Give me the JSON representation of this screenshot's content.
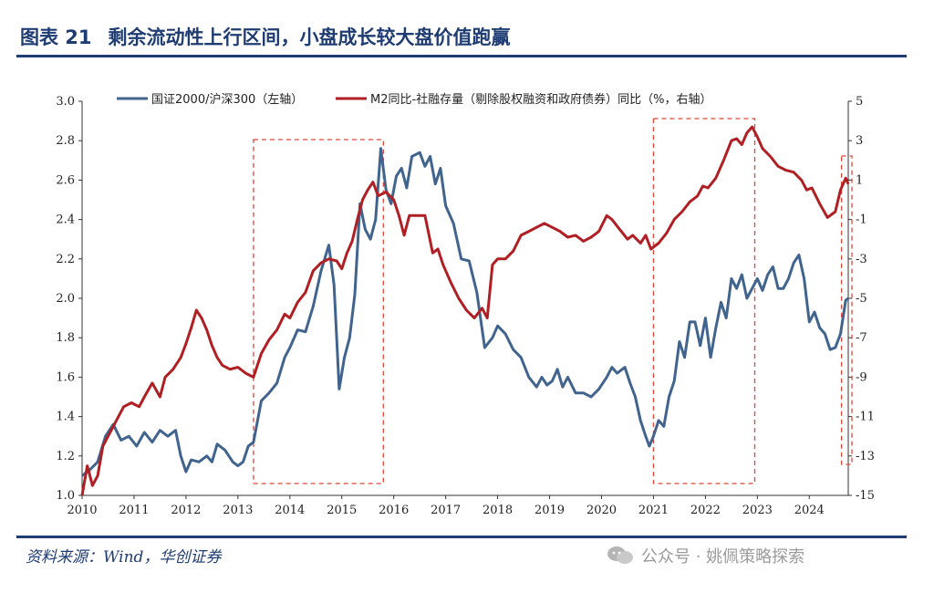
{
  "header": {
    "figure_no": "图表 21",
    "title": "剩余流动性上行区间，小盘成长较大盘价值跑赢"
  },
  "footer": {
    "source": "资料来源：Wind，华创证券",
    "watermark": "公众号 · 姚佩策略探索"
  },
  "colors": {
    "brand": "#1f3c73",
    "left_series": "#41648f",
    "right_series": "#b01f23",
    "highlight_box": "#e0453a"
  },
  "chart_data": {
    "type": "line",
    "title": "",
    "x_ticks": [
      "2010",
      "2011",
      "2012",
      "2013",
      "2014",
      "2015",
      "2016",
      "2017",
      "2018",
      "2019",
      "2020",
      "2021",
      "2022",
      "2023",
      "2024"
    ],
    "xlim": [
      2010.0,
      2024.75
    ],
    "y_left": {
      "ylim": [
        1.0,
        3.0
      ],
      "ticks": [
        "1.0",
        "1.2",
        "1.4",
        "1.6",
        "1.8",
        "2.0",
        "2.2",
        "2.4",
        "2.6",
        "2.8",
        "3.0"
      ]
    },
    "y_right": {
      "ylim": [
        -15,
        5
      ],
      "ticks": [
        "-15",
        "-13",
        "-11",
        "-9",
        "-7",
        "-5",
        "-3",
        "-1",
        "1",
        "3",
        "5"
      ]
    },
    "grid": false,
    "legend_position": "top",
    "series": [
      {
        "name": "国证2000/沪深300（左轴）",
        "axis": "left",
        "color": "#41648f",
        "points": [
          [
            2010.0,
            1.1
          ],
          [
            2010.15,
            1.13
          ],
          [
            2010.3,
            1.17
          ],
          [
            2010.45,
            1.3
          ],
          [
            2010.6,
            1.36
          ],
          [
            2010.75,
            1.28
          ],
          [
            2010.9,
            1.3
          ],
          [
            2011.05,
            1.25
          ],
          [
            2011.2,
            1.32
          ],
          [
            2011.35,
            1.27
          ],
          [
            2011.5,
            1.33
          ],
          [
            2011.65,
            1.3
          ],
          [
            2011.8,
            1.33
          ],
          [
            2011.9,
            1.2
          ],
          [
            2012.0,
            1.12
          ],
          [
            2012.1,
            1.18
          ],
          [
            2012.25,
            1.17
          ],
          [
            2012.4,
            1.2
          ],
          [
            2012.5,
            1.17
          ],
          [
            2012.6,
            1.26
          ],
          [
            2012.75,
            1.23
          ],
          [
            2012.9,
            1.17
          ],
          [
            2013.0,
            1.15
          ],
          [
            2013.1,
            1.17
          ],
          [
            2013.2,
            1.25
          ],
          [
            2013.3,
            1.27
          ],
          [
            2013.45,
            1.48
          ],
          [
            2013.6,
            1.52
          ],
          [
            2013.75,
            1.57
          ],
          [
            2013.9,
            1.7
          ],
          [
            2014.0,
            1.75
          ],
          [
            2014.15,
            1.84
          ],
          [
            2014.3,
            1.83
          ],
          [
            2014.45,
            1.96
          ],
          [
            2014.6,
            2.14
          ],
          [
            2014.75,
            2.27
          ],
          [
            2014.85,
            2.07
          ],
          [
            2014.95,
            1.54
          ],
          [
            2015.05,
            1.7
          ],
          [
            2015.15,
            1.8
          ],
          [
            2015.25,
            2.02
          ],
          [
            2015.35,
            2.48
          ],
          [
            2015.45,
            2.35
          ],
          [
            2015.55,
            2.3
          ],
          [
            2015.65,
            2.4
          ],
          [
            2015.75,
            2.76
          ],
          [
            2015.85,
            2.55
          ],
          [
            2015.95,
            2.48
          ],
          [
            2016.05,
            2.62
          ],
          [
            2016.15,
            2.66
          ],
          [
            2016.25,
            2.56
          ],
          [
            2016.35,
            2.72
          ],
          [
            2016.5,
            2.74
          ],
          [
            2016.6,
            2.67
          ],
          [
            2016.7,
            2.72
          ],
          [
            2016.8,
            2.58
          ],
          [
            2016.9,
            2.66
          ],
          [
            2017.0,
            2.47
          ],
          [
            2017.15,
            2.38
          ],
          [
            2017.3,
            2.2
          ],
          [
            2017.45,
            2.19
          ],
          [
            2017.6,
            2.03
          ],
          [
            2017.75,
            1.75
          ],
          [
            2017.9,
            1.8
          ],
          [
            2018.0,
            1.86
          ],
          [
            2018.15,
            1.82
          ],
          [
            2018.3,
            1.74
          ],
          [
            2018.45,
            1.7
          ],
          [
            2018.6,
            1.6
          ],
          [
            2018.75,
            1.55
          ],
          [
            2018.85,
            1.6
          ],
          [
            2018.95,
            1.56
          ],
          [
            2019.05,
            1.58
          ],
          [
            2019.15,
            1.64
          ],
          [
            2019.25,
            1.55
          ],
          [
            2019.35,
            1.6
          ],
          [
            2019.5,
            1.52
          ],
          [
            2019.65,
            1.52
          ],
          [
            2019.8,
            1.5
          ],
          [
            2019.95,
            1.54
          ],
          [
            2020.1,
            1.6
          ],
          [
            2020.2,
            1.65
          ],
          [
            2020.3,
            1.62
          ],
          [
            2020.45,
            1.65
          ],
          [
            2020.55,
            1.57
          ],
          [
            2020.65,
            1.5
          ],
          [
            2020.75,
            1.38
          ],
          [
            2020.85,
            1.3
          ],
          [
            2020.92,
            1.25
          ],
          [
            2021.0,
            1.3
          ],
          [
            2021.1,
            1.38
          ],
          [
            2021.2,
            1.35
          ],
          [
            2021.3,
            1.5
          ],
          [
            2021.4,
            1.58
          ],
          [
            2021.5,
            1.78
          ],
          [
            2021.6,
            1.7
          ],
          [
            2021.7,
            1.88
          ],
          [
            2021.8,
            1.88
          ],
          [
            2021.9,
            1.76
          ],
          [
            2022.0,
            1.9
          ],
          [
            2022.1,
            1.7
          ],
          [
            2022.2,
            1.85
          ],
          [
            2022.3,
            1.98
          ],
          [
            2022.4,
            1.9
          ],
          [
            2022.5,
            2.1
          ],
          [
            2022.6,
            2.05
          ],
          [
            2022.7,
            2.12
          ],
          [
            2022.8,
            2.0
          ],
          [
            2022.9,
            2.05
          ],
          [
            2023.0,
            2.1
          ],
          [
            2023.1,
            2.04
          ],
          [
            2023.2,
            2.12
          ],
          [
            2023.3,
            2.16
          ],
          [
            2023.4,
            2.05
          ],
          [
            2023.5,
            2.05
          ],
          [
            2023.6,
            2.1
          ],
          [
            2023.7,
            2.18
          ],
          [
            2023.8,
            2.22
          ],
          [
            2023.9,
            2.1
          ],
          [
            2024.0,
            1.88
          ],
          [
            2024.1,
            1.93
          ],
          [
            2024.2,
            1.85
          ],
          [
            2024.3,
            1.82
          ],
          [
            2024.4,
            1.74
          ],
          [
            2024.5,
            1.75
          ],
          [
            2024.6,
            1.82
          ],
          [
            2024.7,
            1.99
          ],
          [
            2024.75,
            2.0
          ]
        ]
      },
      {
        "name": "M2同比-社融存量（剔除股权融资和政府债券）同比（%，右轴）",
        "axis": "right",
        "color": "#b01f23",
        "points": [
          [
            2010.0,
            -15.0
          ],
          [
            2010.1,
            -13.5
          ],
          [
            2010.2,
            -14.5
          ],
          [
            2010.3,
            -14.0
          ],
          [
            2010.4,
            -12.5
          ],
          [
            2010.5,
            -12.0
          ],
          [
            2010.6,
            -11.5
          ],
          [
            2010.7,
            -11.0
          ],
          [
            2010.8,
            -10.5
          ],
          [
            2010.95,
            -10.3
          ],
          [
            2011.1,
            -10.5
          ],
          [
            2011.2,
            -10.0
          ],
          [
            2011.35,
            -9.3
          ],
          [
            2011.5,
            -10.0
          ],
          [
            2011.6,
            -9.0
          ],
          [
            2011.75,
            -8.6
          ],
          [
            2011.9,
            -8.0
          ],
          [
            2012.0,
            -7.3
          ],
          [
            2012.1,
            -6.5
          ],
          [
            2012.2,
            -5.6
          ],
          [
            2012.3,
            -6.0
          ],
          [
            2012.4,
            -6.6
          ],
          [
            2012.5,
            -7.4
          ],
          [
            2012.6,
            -8.0
          ],
          [
            2012.7,
            -8.4
          ],
          [
            2012.85,
            -8.6
          ],
          [
            2013.0,
            -8.5
          ],
          [
            2013.15,
            -8.8
          ],
          [
            2013.3,
            -9.0
          ],
          [
            2013.45,
            -7.8
          ],
          [
            2013.6,
            -7.1
          ],
          [
            2013.75,
            -6.6
          ],
          [
            2013.9,
            -5.8
          ],
          [
            2014.0,
            -6.0
          ],
          [
            2014.15,
            -5.2
          ],
          [
            2014.3,
            -4.7
          ],
          [
            2014.45,
            -3.6
          ],
          [
            2014.6,
            -3.2
          ],
          [
            2014.75,
            -3.0
          ],
          [
            2014.9,
            -3.1
          ],
          [
            2015.0,
            -3.5
          ],
          [
            2015.1,
            -2.7
          ],
          [
            2015.2,
            -2.1
          ],
          [
            2015.3,
            -1.0
          ],
          [
            2015.4,
            0.0
          ],
          [
            2015.5,
            0.5
          ],
          [
            2015.6,
            0.9
          ],
          [
            2015.7,
            0.2
          ],
          [
            2015.85,
            0.4
          ],
          [
            2016.0,
            0.0
          ],
          [
            2016.1,
            -0.8
          ],
          [
            2016.2,
            -1.8
          ],
          [
            2016.3,
            -0.8
          ],
          [
            2016.45,
            -0.8
          ],
          [
            2016.6,
            -0.8
          ],
          [
            2016.75,
            -2.7
          ],
          [
            2016.85,
            -2.5
          ],
          [
            2016.95,
            -3.3
          ],
          [
            2017.1,
            -4.2
          ],
          [
            2017.25,
            -5.0
          ],
          [
            2017.4,
            -5.6
          ],
          [
            2017.55,
            -6.0
          ],
          [
            2017.7,
            -5.5
          ],
          [
            2017.8,
            -6.0
          ],
          [
            2017.9,
            -3.3
          ],
          [
            2018.0,
            -3.0
          ],
          [
            2018.15,
            -3.0
          ],
          [
            2018.3,
            -2.6
          ],
          [
            2018.45,
            -1.8
          ],
          [
            2018.6,
            -1.6
          ],
          [
            2018.75,
            -1.4
          ],
          [
            2018.9,
            -1.2
          ],
          [
            2019.05,
            -1.4
          ],
          [
            2019.2,
            -1.6
          ],
          [
            2019.35,
            -1.9
          ],
          [
            2019.5,
            -1.8
          ],
          [
            2019.65,
            -2.1
          ],
          [
            2019.8,
            -1.9
          ],
          [
            2019.95,
            -1.6
          ],
          [
            2020.1,
            -0.8
          ],
          [
            2020.2,
            -1.0
          ],
          [
            2020.35,
            -1.5
          ],
          [
            2020.5,
            -2.0
          ],
          [
            2020.6,
            -1.8
          ],
          [
            2020.75,
            -2.2
          ],
          [
            2020.85,
            -1.8
          ],
          [
            2020.95,
            -2.5
          ],
          [
            2021.1,
            -2.2
          ],
          [
            2021.25,
            -1.7
          ],
          [
            2021.4,
            -1.0
          ],
          [
            2021.55,
            -0.6
          ],
          [
            2021.7,
            -0.1
          ],
          [
            2021.85,
            0.2
          ],
          [
            2021.95,
            0.7
          ],
          [
            2022.05,
            0.6
          ],
          [
            2022.2,
            1.1
          ],
          [
            2022.35,
            2.0
          ],
          [
            2022.5,
            3.0
          ],
          [
            2022.6,
            3.1
          ],
          [
            2022.7,
            2.8
          ],
          [
            2022.8,
            3.4
          ],
          [
            2022.9,
            3.7
          ],
          [
            2023.0,
            3.2
          ],
          [
            2023.1,
            2.6
          ],
          [
            2023.25,
            2.2
          ],
          [
            2023.4,
            1.7
          ],
          [
            2023.55,
            1.5
          ],
          [
            2023.7,
            1.4
          ],
          [
            2023.85,
            1.0
          ],
          [
            2023.95,
            0.5
          ],
          [
            2024.05,
            0.6
          ],
          [
            2024.2,
            -0.2
          ],
          [
            2024.35,
            -0.9
          ],
          [
            2024.5,
            -0.6
          ],
          [
            2024.6,
            0.5
          ],
          [
            2024.7,
            1.1
          ],
          [
            2024.75,
            0.8
          ]
        ]
      }
    ],
    "highlight_ranges": [
      [
        2013.3,
        2015.8
      ],
      [
        2021.0,
        2022.95
      ],
      [
        2024.62,
        2024.95
      ]
    ]
  }
}
